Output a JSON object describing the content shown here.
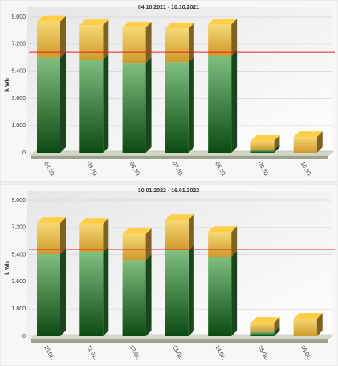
{
  "chart_data": [
    {
      "type": "bar",
      "stacked": true,
      "title": "04.10.2021 - 10.10.2021",
      "y_label": "k Wh",
      "categories": [
        "04.10.",
        "05.10.",
        "06.10.",
        "07.10.",
        "08.10.",
        "09.10.",
        "10.10."
      ],
      "series": [
        {
          "color": "#2f7d35",
          "values": [
            6300,
            6170,
            5960,
            6010,
            6440,
            200,
            0
          ]
        },
        {
          "color": "#e3b33e",
          "values": [
            2400,
            2290,
            2340,
            2230,
            2070,
            600,
            1060
          ]
        }
      ],
      "threshold": 6650,
      "threshold_color": "#e02020",
      "ylim": [
        0,
        9000
      ],
      "yticks": [
        0,
        {
          "value": 1800,
          "label": "1.800"
        },
        {
          "value": 3600,
          "label": "3.600"
        },
        {
          "value": 5400,
          "label": "5.400"
        },
        {
          "value": 7200,
          "label": "7.200"
        },
        {
          "value": 9000,
          "label": "9.000"
        }
      ],
      "grid": true
    },
    {
      "type": "bar",
      "stacked": true,
      "title": "10.01.2022 - 16.01.2022",
      "y_label": "k Wh",
      "categories": [
        "10.01.",
        "11.01.",
        "12.01.",
        "13.01.",
        "14.01.",
        "15.01.",
        "16.01."
      ],
      "series": [
        {
          "color": "#2f7d35",
          "values": [
            5430,
            5590,
            5050,
            5690,
            5270,
            300,
            0
          ]
        },
        {
          "color": "#e3b33e",
          "values": [
            2070,
            1860,
            1710,
            2020,
            1640,
            600,
            1170
          ]
        }
      ],
      "threshold": 5750,
      "threshold_color": "#e02020",
      "ylim": [
        0,
        9000
      ],
      "yticks": [
        0,
        {
          "value": 1800,
          "label": "1.800"
        },
        {
          "value": 3600,
          "label": "3.600"
        },
        {
          "value": 5400,
          "label": "5.400"
        },
        {
          "value": 7200,
          "label": "7.200"
        },
        {
          "value": 9000,
          "label": "9.000"
        }
      ],
      "grid": true
    }
  ]
}
